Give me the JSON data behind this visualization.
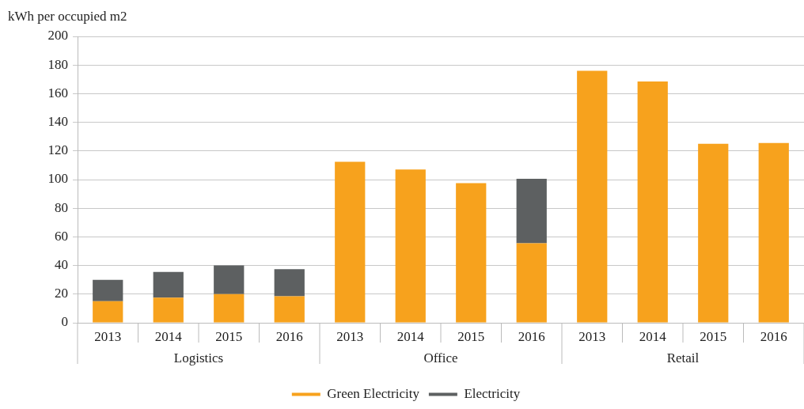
{
  "chart_data": {
    "type": "bar",
    "stacked": true,
    "ylabel": "kWh per occupied m2",
    "categories": [
      "2013",
      "2014",
      "2015",
      "2016",
      "2013",
      "2014",
      "2015",
      "2016",
      "2013",
      "2014",
      "2015",
      "2016"
    ],
    "annotations": [
      "Logistics",
      "Office",
      "Retail"
    ],
    "series": [
      {
        "name": "Green Electricity",
        "color": "#f7a21d",
        "values": [
          15,
          17.5,
          20,
          18.5,
          112.5,
          107,
          97.5,
          55.5,
          176,
          168.5,
          125,
          125.5
        ]
      },
      {
        "name": "Electricity",
        "color": "#5d6061",
        "values": [
          15,
          18,
          20,
          19,
          0,
          0,
          0,
          45,
          0,
          0,
          0,
          0
        ]
      }
    ],
    "ylim": [
      0,
      200
    ],
    "yticks": [
      0,
      20,
      40,
      60,
      80,
      100,
      120,
      140,
      160,
      180,
      200
    ],
    "grid": "y",
    "legend": "bottom"
  }
}
